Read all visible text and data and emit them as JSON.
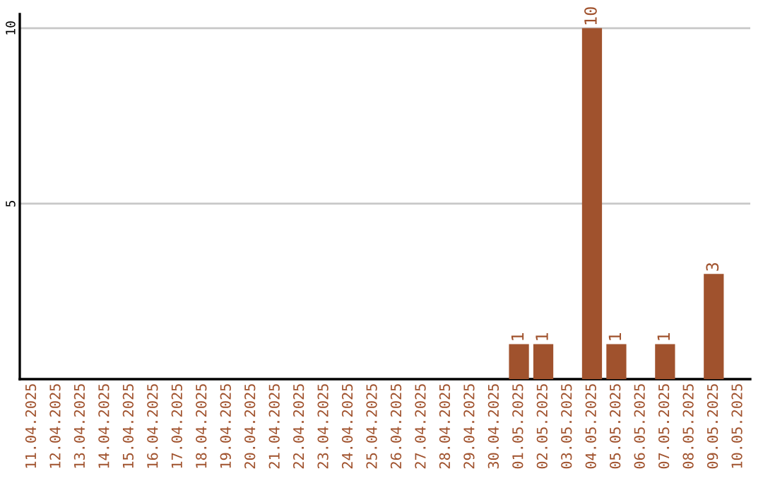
{
  "chart_data": {
    "type": "bar",
    "categories": [
      "11.04.2025",
      "12.04.2025",
      "13.04.2025",
      "14.04.2025",
      "15.04.2025",
      "16.04.2025",
      "17.04.2025",
      "18.04.2025",
      "19.04.2025",
      "20.04.2025",
      "21.04.2025",
      "22.04.2025",
      "23.04.2025",
      "24.04.2025",
      "25.04.2025",
      "26.04.2025",
      "27.04.2025",
      "28.04.2025",
      "29.04.2025",
      "30.04.2025",
      "01.05.2025",
      "02.05.2025",
      "03.05.2025",
      "04.05.2025",
      "05.05.2025",
      "06.05.2025",
      "07.05.2025",
      "08.05.2025",
      "09.05.2025",
      "10.05.2025"
    ],
    "values": [
      0,
      0,
      0,
      0,
      0,
      0,
      0,
      0,
      0,
      0,
      0,
      0,
      0,
      0,
      0,
      0,
      0,
      0,
      0,
      0,
      1,
      1,
      0,
      10,
      1,
      0,
      1,
      0,
      3,
      0
    ],
    "value_labels": [
      null,
      null,
      null,
      null,
      null,
      null,
      null,
      null,
      null,
      null,
      null,
      null,
      null,
      null,
      null,
      null,
      null,
      null,
      null,
      null,
      "1",
      "1",
      null,
      "10",
      "1",
      null,
      "1",
      null,
      "3",
      null
    ],
    "color": "#a0522d",
    "ylim": [
      0,
      10.4
    ],
    "yticks": [
      5,
      10
    ],
    "grid": "y",
    "legend": false
  }
}
